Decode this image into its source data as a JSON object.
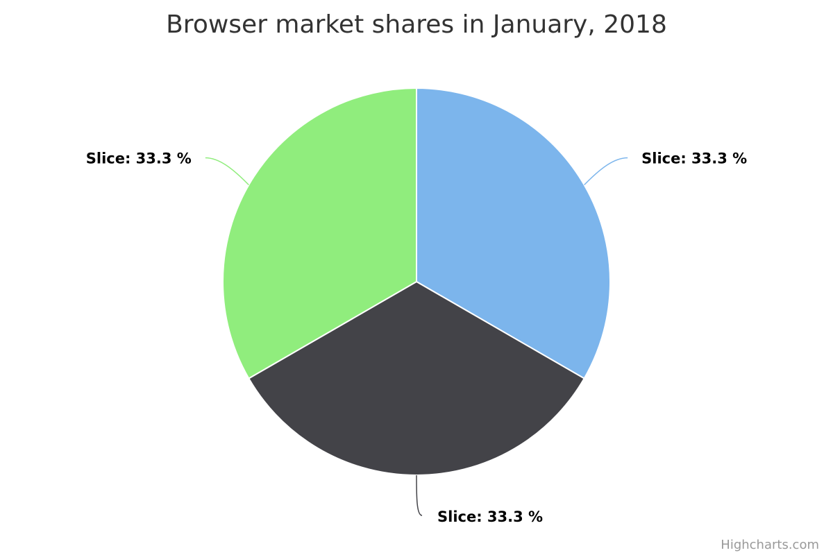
{
  "chart_data": {
    "type": "pie",
    "title": "Browser market shares in January, 2018",
    "slices": [
      {
        "name": "Slice",
        "value": 33.3,
        "color": "#7cb5ec",
        "label": "Slice: 33.3 %"
      },
      {
        "name": "Slice",
        "value": 33.3,
        "color": "#434348",
        "label": "Slice: 33.3 %"
      },
      {
        "name": "Slice",
        "value": 33.3,
        "color": "#90ed7d",
        "label": "Slice: 33.3 %"
      }
    ],
    "legend": "none"
  },
  "credits": "Highcharts.com"
}
